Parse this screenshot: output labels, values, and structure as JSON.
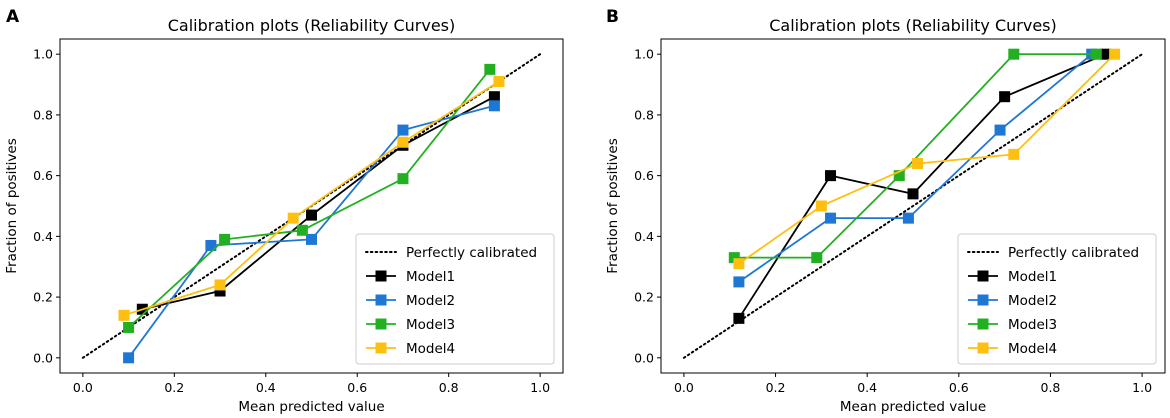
{
  "chart_data": [
    {
      "panel": "A",
      "type": "line",
      "title": "Calibration plots (Reliability Curves)",
      "xlabel": "Mean predicted value",
      "ylabel": "Fraction of positives",
      "xlim": [
        -0.05,
        1.05
      ],
      "ylim": [
        -0.05,
        1.05
      ],
      "xticks": [
        0.0,
        0.2,
        0.4,
        0.6,
        0.8,
        1.0
      ],
      "yticks": [
        0.0,
        0.2,
        0.4,
        0.6,
        0.8,
        1.0
      ],
      "xtick_labels": [
        "0.0",
        "0.2",
        "0.4",
        "0.6",
        "0.8",
        "1.0"
      ],
      "ytick_labels": [
        "0.0",
        "0.2",
        "0.4",
        "0.6",
        "0.8",
        "1.0"
      ],
      "legend_position": "lower-right",
      "reference": {
        "name": "Perfectly calibrated",
        "x": [
          0,
          1
        ],
        "y": [
          0,
          1
        ],
        "color": "#000000",
        "style": "dotted"
      },
      "series": [
        {
          "name": "Model1",
          "color": "#000000",
          "x": [
            0.13,
            0.3,
            0.5,
            0.7,
            0.9
          ],
          "y": [
            0.16,
            0.22,
            0.47,
            0.7,
            0.86
          ]
        },
        {
          "name": "Model2",
          "color": "#1f77d4",
          "x": [
            0.1,
            0.28,
            0.5,
            0.7,
            0.9
          ],
          "y": [
            0.0,
            0.37,
            0.39,
            0.75,
            0.83
          ]
        },
        {
          "name": "Model3",
          "color": "#22b022",
          "x": [
            0.1,
            0.31,
            0.48,
            0.7,
            0.89
          ],
          "y": [
            0.1,
            0.39,
            0.42,
            0.59,
            0.95
          ]
        },
        {
          "name": "Model4",
          "color": "#fdc010",
          "x": [
            0.09,
            0.3,
            0.46,
            0.7,
            0.91
          ],
          "y": [
            0.14,
            0.24,
            0.46,
            0.71,
            0.91
          ]
        }
      ]
    },
    {
      "panel": "B",
      "type": "line",
      "title": "Calibration plots (Reliability Curves)",
      "xlabel": "Mean predicted value",
      "ylabel": "Fraction of positives",
      "xlim": [
        -0.05,
        1.05
      ],
      "ylim": [
        -0.05,
        1.05
      ],
      "xticks": [
        0.0,
        0.2,
        0.4,
        0.6,
        0.8,
        1.0
      ],
      "yticks": [
        0.0,
        0.2,
        0.4,
        0.6,
        0.8,
        1.0
      ],
      "xtick_labels": [
        "0.0",
        "0.2",
        "0.4",
        "0.6",
        "0.8",
        "1.0"
      ],
      "ytick_labels": [
        "0.0",
        "0.2",
        "0.4",
        "0.6",
        "0.8",
        "1.0"
      ],
      "legend_position": "lower-right",
      "reference": {
        "name": "Perfectly calibrated",
        "x": [
          0,
          1
        ],
        "y": [
          0,
          1
        ],
        "color": "#000000",
        "style": "dotted"
      },
      "series": [
        {
          "name": "Model1",
          "color": "#000000",
          "x": [
            0.12,
            0.32,
            0.5,
            0.7,
            0.92
          ],
          "y": [
            0.13,
            0.6,
            0.54,
            0.86,
            1.0
          ]
        },
        {
          "name": "Model2",
          "color": "#1f77d4",
          "x": [
            0.12,
            0.32,
            0.49,
            0.69,
            0.89
          ],
          "y": [
            0.25,
            0.46,
            0.46,
            0.75,
            1.0
          ]
        },
        {
          "name": "Model3",
          "color": "#22b022",
          "x": [
            0.11,
            0.29,
            0.47,
            0.72,
            0.9
          ],
          "y": [
            0.33,
            0.33,
            0.6,
            1.0,
            1.0
          ]
        },
        {
          "name": "Model4",
          "color": "#fdc010",
          "x": [
            0.12,
            0.3,
            0.51,
            0.72,
            0.94
          ],
          "y": [
            0.31,
            0.5,
            0.64,
            0.67,
            1.0
          ]
        }
      ]
    }
  ]
}
